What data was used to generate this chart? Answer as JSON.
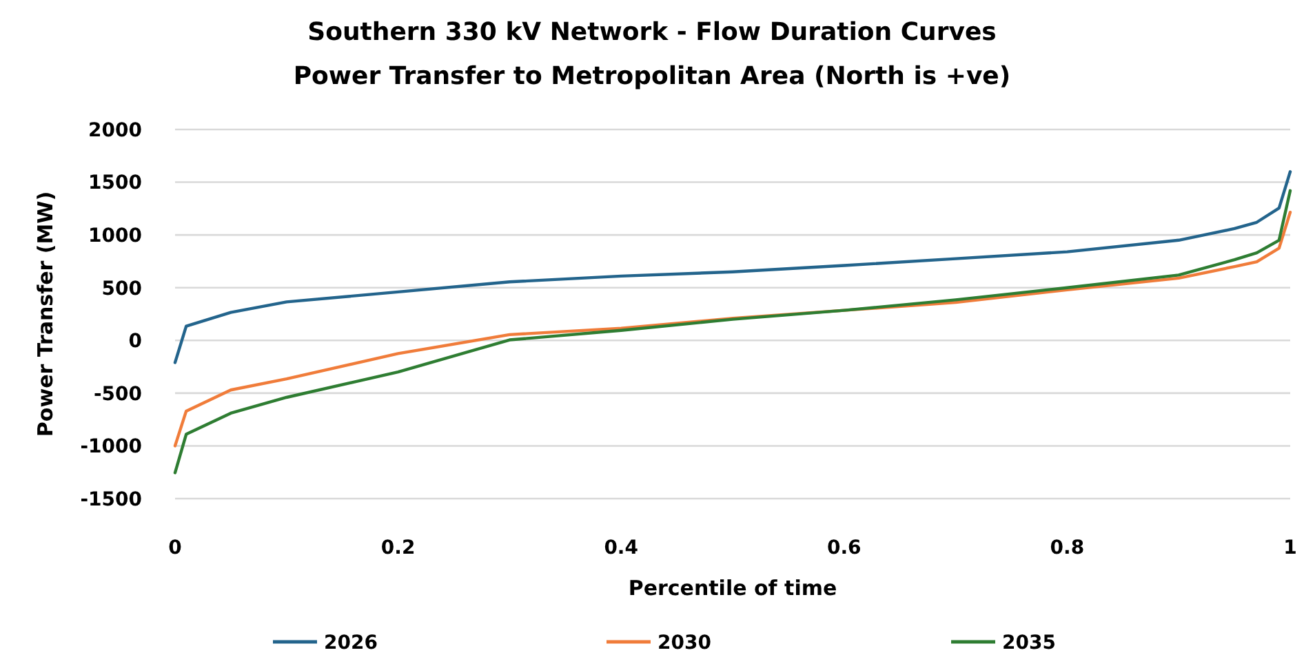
{
  "chart_data": {
    "type": "line",
    "title": "Southern 330 kV Network - Flow Duration Curves",
    "subtitle": "Power Transfer to Metropolitan Area (North is +ve)",
    "xlabel": "Percentile of time",
    "ylabel": "Power Transfer (MW)",
    "x": [
      0,
      0.01,
      0.05,
      0.1,
      0.2,
      0.3,
      0.4,
      0.5,
      0.6,
      0.7,
      0.8,
      0.9,
      0.95,
      0.97,
      0.99,
      1
    ],
    "series": [
      {
        "name": "2026",
        "color": "#23648c",
        "values": [
          -210,
          135,
          265,
          365,
          460,
          555,
          610,
          650,
          710,
          775,
          840,
          950,
          1060,
          1120,
          1255,
          1600
        ]
      },
      {
        "name": "2030",
        "color": "#f07c3a",
        "values": [
          -1000,
          -670,
          -470,
          -365,
          -125,
          55,
          115,
          210,
          285,
          360,
          480,
          590,
          700,
          745,
          875,
          1215
        ]
      },
      {
        "name": "2035",
        "color": "#2e7d32",
        "values": [
          -1255,
          -890,
          -690,
          -540,
          -300,
          5,
          95,
          200,
          285,
          385,
          500,
          620,
          765,
          830,
          950,
          1420
        ]
      }
    ],
    "xlim": [
      0,
      1
    ],
    "ylim": [
      -1500,
      2000
    ],
    "xticks": [
      0,
      0.2,
      0.4,
      0.6,
      0.8,
      1
    ],
    "yticks": [
      -1500,
      -1000,
      -500,
      0,
      500,
      1000,
      1500,
      2000
    ],
    "grid": "y",
    "legend": "bottom",
    "marker": "none",
    "line_style": "solid"
  }
}
